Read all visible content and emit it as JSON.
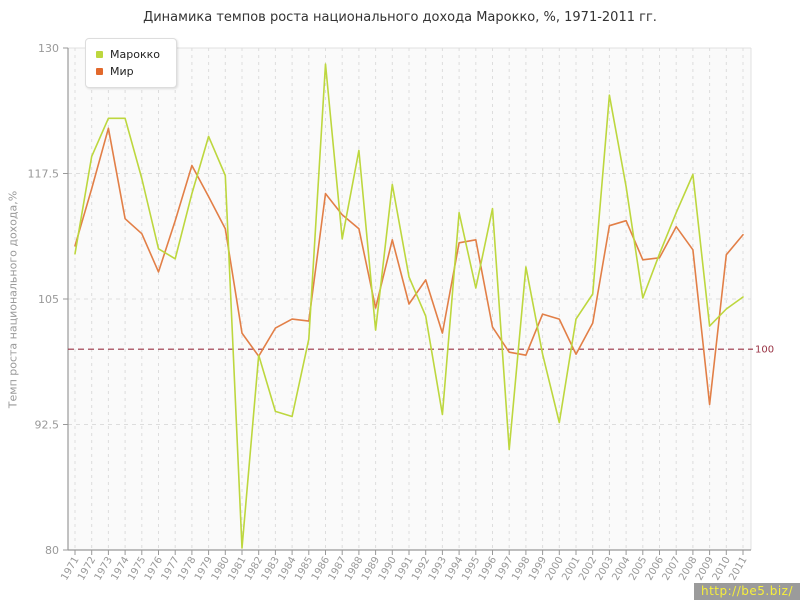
{
  "title": "Динамика темпов роста национального дохода Марокко, %, 1971-2011 гг.",
  "y_axis": {
    "title": "Темп роста национального дохода,%"
  },
  "legend": {
    "items": [
      {
        "key": "morocco",
        "label": "Марокко",
        "color": "#bdd73e"
      },
      {
        "key": "world",
        "label": "Мир",
        "color": "#e2692c"
      }
    ]
  },
  "watermark": {
    "text": "http://be5.biz/"
  },
  "colors": {
    "morocco_line": "#bdd73e",
    "world_line": "#e27f47",
    "benchmark": "#993344",
    "grid": "#dddddd",
    "axis": "#999999",
    "tick_text": "#999999",
    "plot_bg": "#fafafa",
    "plot_border": "#e0e0e0"
  },
  "chart_data": {
    "type": "line",
    "title": "Динамика темпов роста национального дохода Марокко, %, 1971-2011 гг.",
    "xlabel": "",
    "ylabel": "Темп роста национального дохода,%",
    "x": [
      1971,
      1972,
      1973,
      1974,
      1975,
      1976,
      1977,
      1978,
      1979,
      1980,
      1981,
      1982,
      1983,
      1984,
      1985,
      1986,
      1987,
      1988,
      1989,
      1990,
      1991,
      1992,
      1993,
      1994,
      1995,
      1996,
      1997,
      1998,
      1999,
      2000,
      2001,
      2002,
      2003,
      2004,
      2005,
      2006,
      2007,
      2008,
      2009,
      2010,
      2011
    ],
    "ylim": [
      80,
      130
    ],
    "y_ticks": [
      130,
      117.5,
      105,
      92.5,
      80
    ],
    "grid": true,
    "legend_position": "top-left",
    "benchmark": {
      "value": 100,
      "label": "100"
    },
    "series": [
      {
        "key": "morocco",
        "name": "Марокко",
        "values": [
          109.5,
          119.2,
          123.0,
          123.0,
          117.0,
          110.0,
          109.0,
          115.5,
          121.2,
          117.3,
          80.2,
          99.4,
          93.8,
          93.3,
          101.0,
          128.4,
          111.0,
          119.8,
          101.9,
          116.4,
          107.2,
          103.3,
          93.5,
          113.6,
          106.1,
          114.0,
          90.0,
          108.2,
          99.5,
          92.7,
          103.0,
          105.5,
          125.3,
          116.2,
          105.1,
          109.5,
          113.6,
          117.4,
          102.3,
          104.0,
          105.2
        ]
      },
      {
        "key": "world",
        "name": "Мир",
        "values": [
          110.3,
          116.0,
          122.0,
          113.0,
          111.5,
          107.7,
          112.8,
          118.3,
          115.2,
          112.0,
          101.6,
          99.3,
          102.1,
          103.0,
          102.8,
          115.5,
          113.4,
          112.0,
          104.1,
          110.9,
          104.5,
          106.9,
          101.6,
          110.6,
          110.9,
          102.2,
          99.7,
          99.4,
          103.5,
          103.0,
          99.5,
          102.6,
          112.3,
          112.8,
          108.9,
          109.1,
          112.2,
          109.9,
          94.5,
          109.4,
          111.4
        ]
      }
    ]
  }
}
